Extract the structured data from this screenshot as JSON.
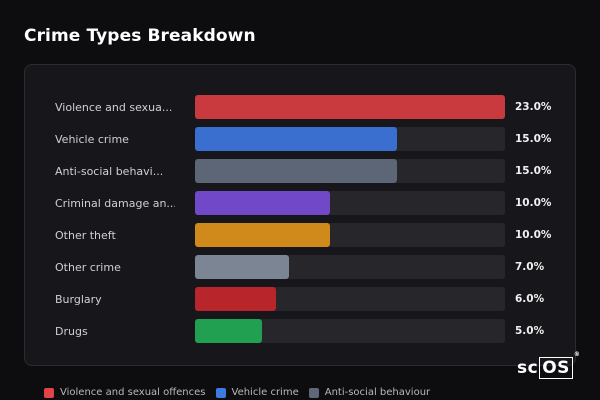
{
  "title": "Crime Types Breakdown",
  "chart_data": {
    "type": "bar",
    "orientation": "horizontal",
    "categories": [
      "Violence and sexua...",
      "Vehicle crime",
      "Anti-social behavi...",
      "Criminal damage an...",
      "Other theft",
      "Other crime",
      "Burglary",
      "Drugs"
    ],
    "values": [
      23.0,
      15.0,
      15.0,
      10.0,
      10.0,
      7.0,
      6.0,
      5.0
    ],
    "value_labels": [
      "23.0%",
      "15.0%",
      "15.0%",
      "10.0%",
      "10.0%",
      "7.0%",
      "6.0%",
      "5.0%"
    ],
    "colors": [
      "#c83a3e",
      "#3a6fd0",
      "#5c6677",
      "#7048c8",
      "#d08a1c",
      "#7c8593",
      "#b8262b",
      "#22a052"
    ],
    "xlim": [
      0,
      23.0
    ],
    "grid": false,
    "legend_position": "bottom"
  },
  "legend": [
    {
      "label": "Violence and sexual offences",
      "color": "#e04448"
    },
    {
      "label": "Vehicle crime",
      "color": "#3d7be0"
    },
    {
      "label": "Anti-social behaviour",
      "color": "#5e6878"
    }
  ],
  "logo": {
    "prefix": "sc",
    "boxed": "OS",
    "mark": "®"
  }
}
